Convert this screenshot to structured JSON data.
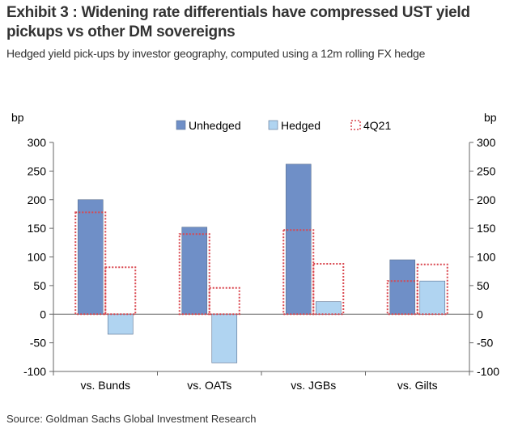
{
  "header": {
    "title": "Exhibit 3 : Widening rate differentials have compressed UST yield pickups vs other DM sovereigns",
    "subtitle": "Hedged yield pick-ups by investor geography, computed using a 12m rolling FX hedge"
  },
  "footer": {
    "source": "Source: Goldman Sachs Global Investment Research"
  },
  "colors": {
    "unhedged": "#6f8fc7",
    "hedged": "#b0d4f1",
    "q4": "#d9474f"
  },
  "chart_data": {
    "type": "bar",
    "categories": [
      "vs. Bunds",
      "vs. OATs",
      "vs. JGBs",
      "vs. Gilts"
    ],
    "series": [
      {
        "name": "Unhedged",
        "values": [
          200,
          152,
          262,
          95
        ]
      },
      {
        "name": "Hedged",
        "values": [
          -35,
          -85,
          22,
          58
        ]
      }
    ],
    "reference_series": {
      "name": "4Q21",
      "unhedged": [
        178,
        140,
        147,
        58
      ],
      "hedged": [
        82,
        46,
        88,
        87
      ]
    },
    "ylabel_left": "bp",
    "ylabel_right": "bp",
    "ylim": [
      -100,
      300
    ],
    "yticks": [
      300,
      250,
      200,
      150,
      100,
      50,
      0,
      -50,
      -100
    ],
    "ytick_labels": [
      "300",
      "250",
      "200",
      "150",
      "100",
      "50",
      "0",
      "-50",
      "-100"
    ],
    "legend": [
      "Unhedged",
      "Hedged",
      "4Q21"
    ],
    "legend_position": "top-center",
    "grid": false
  }
}
